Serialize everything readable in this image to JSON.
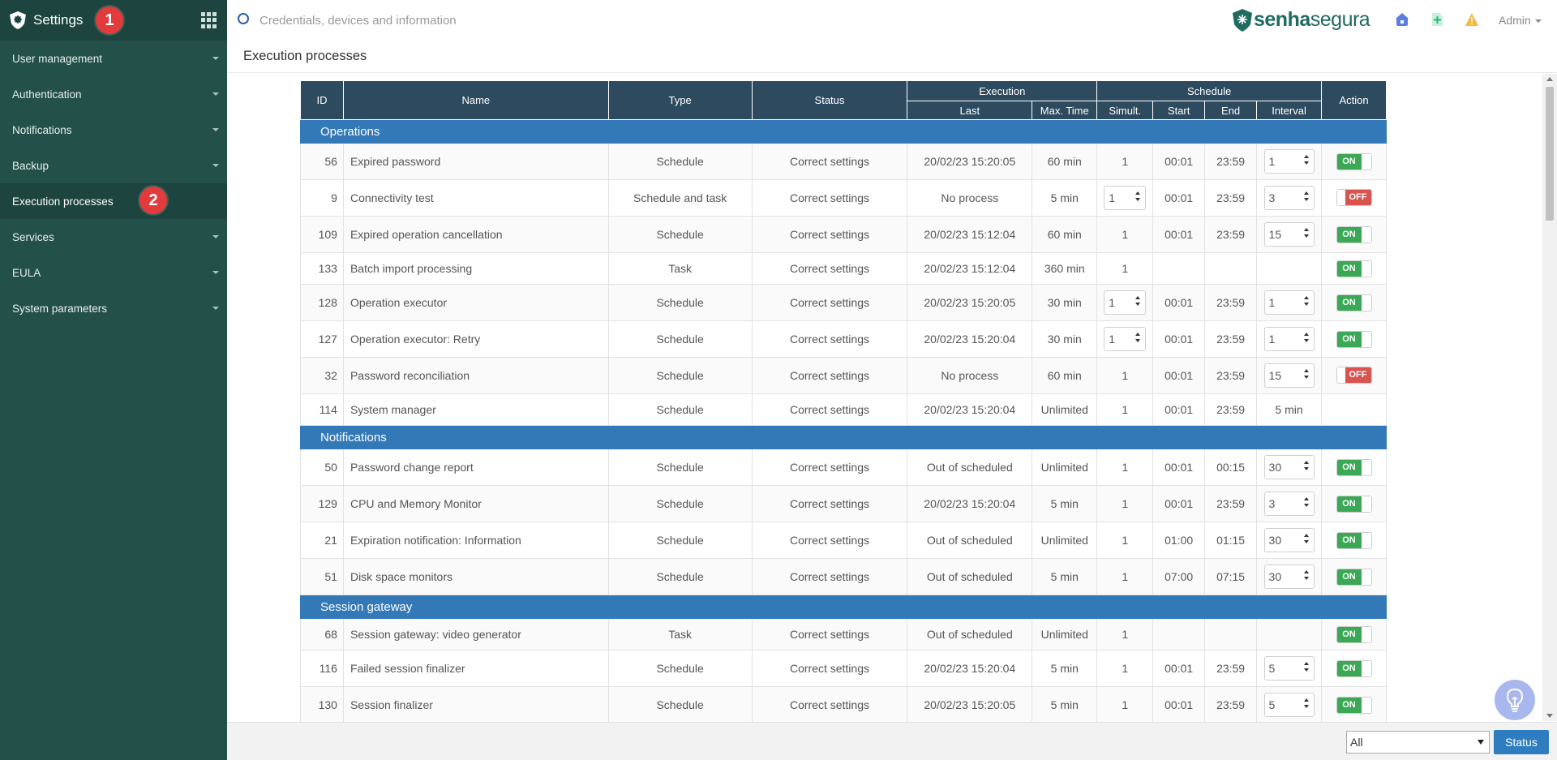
{
  "sidebar": {
    "title": "Settings",
    "badge1": "1",
    "badge2": "2",
    "items": [
      {
        "label": "User management",
        "has_caret": true,
        "active": false
      },
      {
        "label": "Authentication",
        "has_caret": true,
        "active": false
      },
      {
        "label": "Notifications",
        "has_caret": true,
        "active": false
      },
      {
        "label": "Backup",
        "has_caret": true,
        "active": false
      },
      {
        "label": "Execution processes",
        "has_caret": false,
        "active": true
      },
      {
        "label": "Services",
        "has_caret": true,
        "active": false
      },
      {
        "label": "EULA",
        "has_caret": true,
        "active": false
      },
      {
        "label": "System parameters",
        "has_caret": true,
        "active": false
      }
    ]
  },
  "topbar": {
    "search_placeholder": "Credentials, devices and information",
    "brand_part1": "senha",
    "brand_part2": "segura",
    "user": "Admin"
  },
  "page": {
    "title": "Execution processes"
  },
  "table": {
    "headers": {
      "id": "ID",
      "name": "Name",
      "type": "Type",
      "status": "Status",
      "execution": "Execution",
      "last": "Last",
      "max_time": "Max. Time",
      "schedule": "Schedule",
      "simult": "Simult.",
      "start": "Start",
      "end": "End",
      "interval": "Interval",
      "action": "Action"
    },
    "groups": [
      {
        "name": "Operations",
        "rows": [
          {
            "id": "56",
            "name": "Expired password",
            "type": "Schedule",
            "status": "Correct settings",
            "last": "20/02/23 15:20:05",
            "max_time": "60 min",
            "simult": "1",
            "simult_spin": false,
            "start": "00:01",
            "end": "23:59",
            "interval": "1",
            "interval_spin": true,
            "action": "ON"
          },
          {
            "id": "9",
            "name": "Connectivity test",
            "type": "Schedule and task",
            "status": "Correct settings",
            "last": "No process",
            "max_time": "5 min",
            "simult": "1",
            "simult_spin": true,
            "start": "00:01",
            "end": "23:59",
            "interval": "3",
            "interval_spin": true,
            "action": "OFF"
          },
          {
            "id": "109",
            "name": "Expired operation cancellation",
            "type": "Schedule",
            "status": "Correct settings",
            "last": "20/02/23 15:12:04",
            "max_time": "60 min",
            "simult": "1",
            "simult_spin": false,
            "start": "00:01",
            "end": "23:59",
            "interval": "15",
            "interval_spin": true,
            "action": "ON"
          },
          {
            "id": "133",
            "name": "Batch import processing",
            "type": "Task",
            "status": "Correct settings",
            "last": "20/02/23 15:12:04",
            "max_time": "360 min",
            "simult": "1",
            "simult_spin": false,
            "start": "",
            "end": "",
            "interval": "",
            "interval_spin": false,
            "action": "ON",
            "short": true
          },
          {
            "id": "128",
            "name": "Operation executor",
            "type": "Schedule",
            "status": "Correct settings",
            "last": "20/02/23 15:20:05",
            "max_time": "30 min",
            "simult": "1",
            "simult_spin": true,
            "start": "00:01",
            "end": "23:59",
            "interval": "1",
            "interval_spin": true,
            "action": "ON"
          },
          {
            "id": "127",
            "name": "Operation executor: Retry",
            "type": "Schedule",
            "status": "Correct settings",
            "last": "20/02/23 15:20:04",
            "max_time": "30 min",
            "simult": "1",
            "simult_spin": true,
            "start": "00:01",
            "end": "23:59",
            "interval": "1",
            "interval_spin": true,
            "action": "ON"
          },
          {
            "id": "32",
            "name": "Password reconciliation",
            "type": "Schedule",
            "status": "Correct settings",
            "last": "No process",
            "max_time": "60 min",
            "simult": "1",
            "simult_spin": false,
            "start": "00:01",
            "end": "23:59",
            "interval": "15",
            "interval_spin": true,
            "action": "OFF"
          },
          {
            "id": "114",
            "name": "System manager",
            "type": "Schedule",
            "status": "Correct settings",
            "last": "20/02/23 15:20:04",
            "max_time": "Unlimited",
            "simult": "1",
            "simult_spin": false,
            "start": "00:01",
            "end": "23:59",
            "interval": "5 min",
            "interval_spin": false,
            "action": "",
            "short": true
          }
        ]
      },
      {
        "name": "Notifications",
        "rows": [
          {
            "id": "50",
            "name": "Password change report",
            "type": "Schedule",
            "status": "Correct settings",
            "last": "Out of scheduled",
            "max_time": "Unlimited",
            "simult": "1",
            "simult_spin": false,
            "start": "00:01",
            "end": "00:15",
            "interval": "30",
            "interval_spin": true,
            "action": "ON"
          },
          {
            "id": "129",
            "name": "CPU and Memory Monitor",
            "type": "Schedule",
            "status": "Correct settings",
            "last": "20/02/23 15:20:04",
            "max_time": "5 min",
            "simult": "1",
            "simult_spin": false,
            "start": "00:01",
            "end": "23:59",
            "interval": "3",
            "interval_spin": true,
            "action": "ON"
          },
          {
            "id": "21",
            "name": "Expiration notification: Information",
            "type": "Schedule",
            "status": "Correct settings",
            "last": "Out of scheduled",
            "max_time": "Unlimited",
            "simult": "1",
            "simult_spin": false,
            "start": "01:00",
            "end": "01:15",
            "interval": "30",
            "interval_spin": true,
            "action": "ON"
          },
          {
            "id": "51",
            "name": "Disk space monitors",
            "type": "Schedule",
            "status": "Correct settings",
            "last": "Out of scheduled",
            "max_time": "5 min",
            "simult": "1",
            "simult_spin": false,
            "start": "07:00",
            "end": "07:15",
            "interval": "30",
            "interval_spin": true,
            "action": "ON"
          }
        ]
      },
      {
        "name": "Session gateway",
        "rows": [
          {
            "id": "68",
            "name": "Session gateway: video generator",
            "type": "Task",
            "status": "Correct settings",
            "last": "Out of scheduled",
            "max_time": "Unlimited",
            "simult": "1",
            "simult_spin": false,
            "start": "",
            "end": "",
            "interval": "",
            "interval_spin": false,
            "action": "ON",
            "short": true
          },
          {
            "id": "116",
            "name": "Failed session finalizer",
            "type": "Schedule",
            "status": "Correct settings",
            "last": "20/02/23 15:20:04",
            "max_time": "5 min",
            "simult": "1",
            "simult_spin": false,
            "start": "00:01",
            "end": "23:59",
            "interval": "5",
            "interval_spin": true,
            "action": "ON"
          },
          {
            "id": "130",
            "name": "Session finalizer",
            "type": "Schedule",
            "status": "Correct settings",
            "last": "20/02/23 15:20:05",
            "max_time": "5 min",
            "simult": "1",
            "simult_spin": false,
            "start": "00:01",
            "end": "23:59",
            "interval": "5",
            "interval_spin": true,
            "action": "ON"
          }
        ]
      }
    ]
  },
  "footer": {
    "filter_value": "All",
    "status_button": "Status"
  },
  "icons": {
    "search": "search-icon",
    "apps": "grid-icon",
    "home": "home-icon",
    "add": "add-icon",
    "warning": "warning-icon",
    "help": "lightbulb-icon"
  },
  "colors": {
    "sidebar": "#24504a",
    "header": "#2e4a5f",
    "group": "#3379b7",
    "on": "#3aa855",
    "off": "#d9534f",
    "badge": "#e33b3b"
  }
}
